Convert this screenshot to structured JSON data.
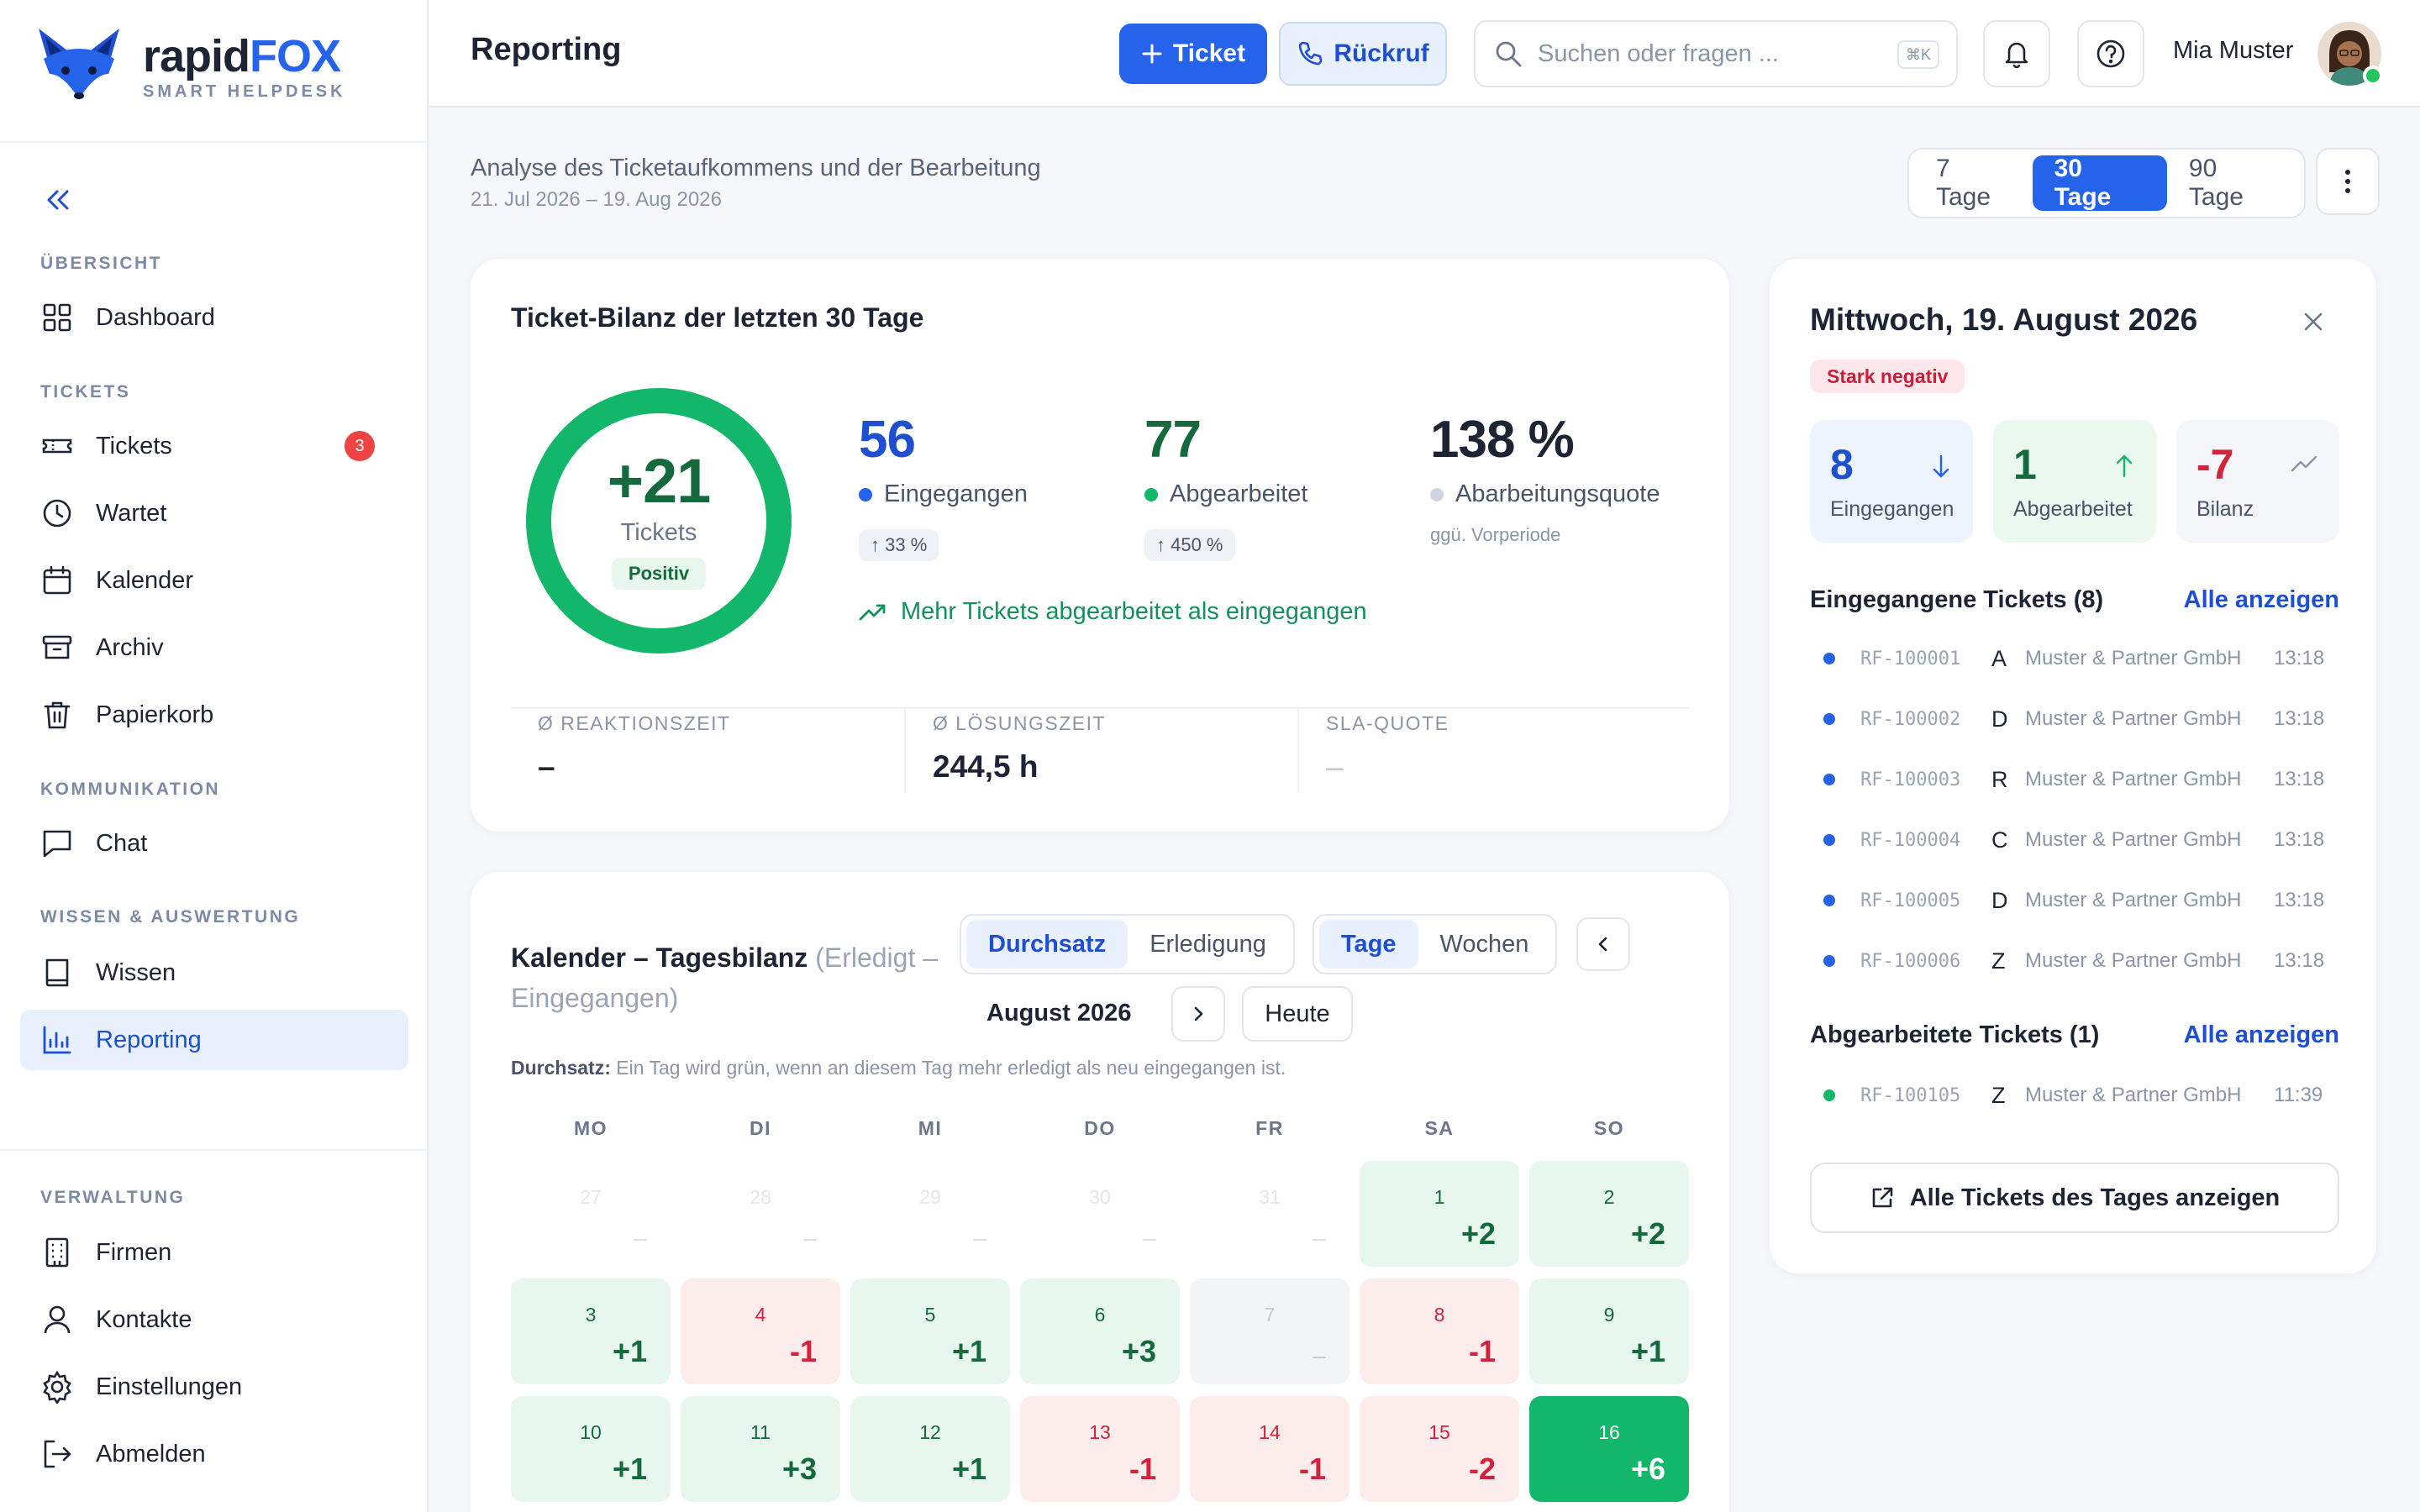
{
  "brand": {
    "name_a": "rapid",
    "name_b": "FOX",
    "tagline": "SMART HELPDESK"
  },
  "sidebar": {
    "sections": {
      "overview": "ÜBERSICHT",
      "tickets": "TICKETS",
      "comm": "KOMMUNIKATION",
      "knowledge": "WISSEN & AUSWERTUNG",
      "admin": "VERWALTUNG"
    },
    "items": {
      "dashboard": "Dashboard",
      "tickets": "Tickets",
      "tickets_badge": "3",
      "waiting": "Wartet",
      "calendar": "Kalender",
      "archive": "Archiv",
      "trash": "Papierkorb",
      "chat": "Chat",
      "knowledge": "Wissen",
      "reporting": "Reporting",
      "companies": "Firmen",
      "contacts": "Kontakte",
      "settings": "Einstellungen",
      "logout": "Abmelden"
    }
  },
  "header": {
    "title": "Reporting",
    "ticket_btn": "Ticket",
    "callback_btn": "Rückruf",
    "search_placeholder": "Suchen oder fragen ...",
    "search_kbd": "⌘K",
    "user_name": "Mia Muster"
  },
  "page": {
    "subtitle": "Analyse des Ticketaufkommens und der Bearbeitung",
    "date_range": "21. Jul 2026 – 19. Aug 2026",
    "ranges": [
      "7 Tage",
      "30 Tage",
      "90 Tage"
    ],
    "active_range": "30 Tage"
  },
  "balance": {
    "title": "Ticket-Bilanz der letzten 30 Tage",
    "net": "+21",
    "net_unit": "Tickets",
    "net_status": "Positiv",
    "incoming": {
      "value": "56",
      "label": "Eingegangen",
      "change": "↑ 33 %"
    },
    "done": {
      "value": "77",
      "label": "Abgearbeitet",
      "change": "↑ 450 %"
    },
    "quota": {
      "value": "138 %",
      "label": "Abarbeitungsquote",
      "note": "ggü. Vorperiode"
    },
    "trend_text": "Mehr Tickets abgearbeitet als eingegangen",
    "stats": [
      {
        "label": "Ø REAKTIONSZEIT",
        "value": "–"
      },
      {
        "label": "Ø LÖSUNGSZEIT",
        "value": "244,5 h"
      },
      {
        "label": "SLA-QUOTE",
        "value": "–"
      }
    ],
    "colors": {
      "positive": "#12b76a",
      "incoming": "#2563eb"
    }
  },
  "calendar": {
    "title": "Kalender – Tagesbilanz",
    "title_note": "(Erledigt – Eingegangen)",
    "mode_tabs": [
      "Durchsatz",
      "Erledigung"
    ],
    "mode_active": "Durchsatz",
    "unit_tabs": [
      "Tage",
      "Wochen"
    ],
    "unit_active": "Tage",
    "month": "August 2026",
    "today_btn": "Heute",
    "hint_label": "Durchsatz:",
    "hint_text": "Ein Tag wird grün, wenn an diesem Tag mehr erledigt als neu eingegangen ist.",
    "weekdays": [
      "MO",
      "DI",
      "MI",
      "DO",
      "FR",
      "SA",
      "SO"
    ],
    "weeks": [
      [
        {
          "d": "27",
          "v": "–",
          "k": "out"
        },
        {
          "d": "28",
          "v": "–",
          "k": "out"
        },
        {
          "d": "29",
          "v": "–",
          "k": "out"
        },
        {
          "d": "30",
          "v": "–",
          "k": "out"
        },
        {
          "d": "31",
          "v": "–",
          "k": "out"
        },
        {
          "d": "1",
          "v": "+2",
          "k": "pos"
        },
        {
          "d": "2",
          "v": "+2",
          "k": "pos"
        }
      ],
      [
        {
          "d": "3",
          "v": "+1",
          "k": "pos"
        },
        {
          "d": "4",
          "v": "-1",
          "k": "neg"
        },
        {
          "d": "5",
          "v": "+1",
          "k": "pos"
        },
        {
          "d": "6",
          "v": "+3",
          "k": "pos"
        },
        {
          "d": "7",
          "v": "–",
          "k": "zero"
        },
        {
          "d": "8",
          "v": "-1",
          "k": "neg"
        },
        {
          "d": "9",
          "v": "+1",
          "k": "pos"
        }
      ],
      [
        {
          "d": "10",
          "v": "+1",
          "k": "pos"
        },
        {
          "d": "11",
          "v": "+3",
          "k": "pos"
        },
        {
          "d": "12",
          "v": "+1",
          "k": "pos"
        },
        {
          "d": "13",
          "v": "-1",
          "k": "neg"
        },
        {
          "d": "14",
          "v": "-1",
          "k": "neg"
        },
        {
          "d": "15",
          "v": "-2",
          "k": "neg"
        },
        {
          "d": "16",
          "v": "+6",
          "k": "strong"
        }
      ]
    ]
  },
  "day_panel": {
    "title": "Mittwoch, 19. August 2026",
    "status": "Stark negativ",
    "incoming": {
      "value": "8",
      "label": "Eingegangen"
    },
    "done": {
      "value": "1",
      "label": "Abgearbeitet"
    },
    "balance": {
      "value": "-7",
      "label": "Bilanz"
    },
    "incoming_list_title": "Eingegangene Tickets (8)",
    "done_list_title": "Abgearbeitete Tickets (1)",
    "show_all": "Alle anzeigen",
    "incoming_tickets": [
      {
        "id": "RF-100001",
        "letter": "A",
        "company": "Muster & Partner GmbH",
        "time": "13:18"
      },
      {
        "id": "RF-100002",
        "letter": "D",
        "company": "Muster & Partner GmbH",
        "time": "13:18"
      },
      {
        "id": "RF-100003",
        "letter": "R",
        "company": "Muster & Partner GmbH",
        "time": "13:18"
      },
      {
        "id": "RF-100004",
        "letter": "C",
        "company": "Muster & Partner GmbH",
        "time": "13:18"
      },
      {
        "id": "RF-100005",
        "letter": "D",
        "company": "Muster & Partner GmbH",
        "time": "13:18"
      },
      {
        "id": "RF-100006",
        "letter": "Z",
        "company": "Muster & Partner GmbH",
        "time": "13:18"
      }
    ],
    "done_tickets": [
      {
        "id": "RF-100105",
        "letter": "Z",
        "company": "Muster & Partner GmbH",
        "time": "11:39"
      }
    ],
    "all_day_btn": "Alle Tickets des Tages anzeigen"
  }
}
